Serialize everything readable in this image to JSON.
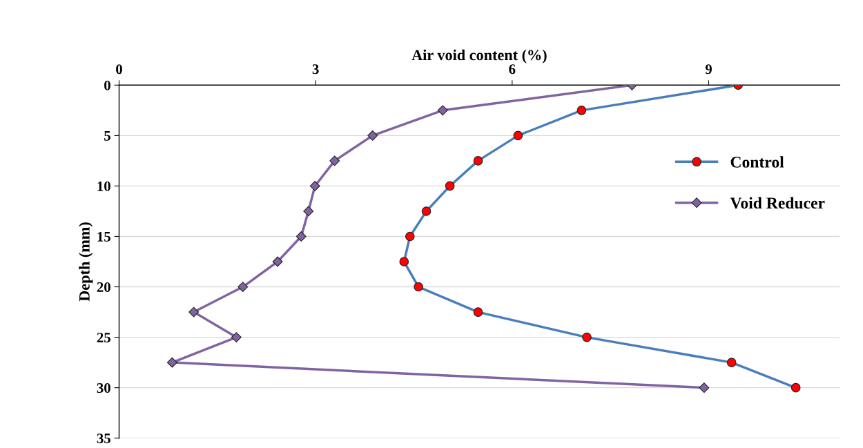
{
  "chart_data": {
    "type": "line",
    "xlabel": "Air void content (%)",
    "ylabel": "Depth (mm)",
    "xlim": [
      0,
      11
    ],
    "xticks": [
      0,
      3,
      6,
      9
    ],
    "ylim": [
      35,
      0
    ],
    "yticks": [
      0,
      5,
      10,
      15,
      20,
      25,
      30,
      35
    ],
    "grid": "y",
    "legend": "right",
    "line_style": "solid",
    "series": [
      {
        "name": "Control",
        "color": "#4a7ebb",
        "marker": "circle",
        "colors": [
          "#ff0000",
          "#ff0000",
          "#ff0000",
          "#ff0000",
          "#ff0000",
          "#ff0000",
          "#ff0000",
          "#ff0000",
          "#ff0000",
          "#ff0000",
          "#ff0000",
          "#ff0000",
          "#ff0000"
        ],
        "x": [
          9.45,
          7.06,
          6.09,
          5.48,
          5.05,
          4.69,
          4.44,
          4.35,
          4.57,
          5.48,
          7.14,
          9.35,
          10.33
        ],
        "values": [
          0,
          2.5,
          5,
          7.5,
          10,
          12.5,
          15,
          17.5,
          20,
          22.5,
          25,
          27.5,
          30
        ]
      },
      {
        "name": "Void Reducer",
        "color": "#8064a2",
        "marker": "diamond",
        "colors": [
          "#8064a2",
          "#8064a2",
          "#8064a2",
          "#8064a2",
          "#8064a2",
          "#8064a2",
          "#8064a2",
          "#8064a2",
          "#8064a2",
          "#8064a2",
          "#8064a2",
          "#8064a2",
          "#8064a2"
        ],
        "x": [
          7.83,
          4.94,
          3.87,
          3.29,
          2.99,
          2.89,
          2.78,
          2.42,
          1.89,
          1.14,
          1.79,
          0.81,
          8.93
        ],
        "values": [
          0,
          2.5,
          5,
          7.5,
          10,
          12.5,
          15,
          17.5,
          20,
          22.5,
          25,
          27.5,
          30
        ]
      }
    ]
  }
}
